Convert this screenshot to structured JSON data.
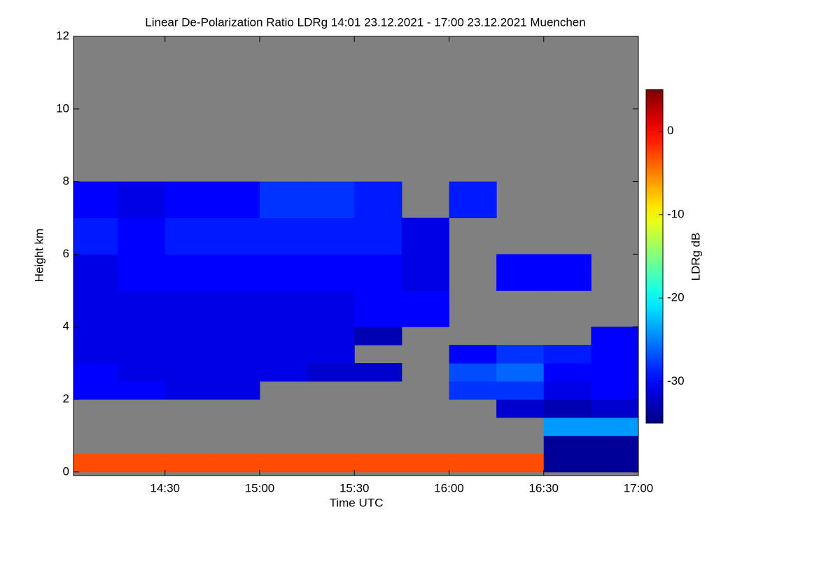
{
  "chart_data": {
    "type": "heatmap",
    "title": "Linear De-Polarization Ratio LDRg   14:01 23.12.2021 - 17:00 23.12.2021 Muenchen",
    "x_label": "Time UTC",
    "y_label": "Height km",
    "colorbar_label": "LDRg dB",
    "colormap": "jet",
    "background": "#808080",
    "xlim": [
      14.0167,
      17.0
    ],
    "xticks": [
      {
        "value": 14.5,
        "label": "14:30"
      },
      {
        "value": 15.0,
        "label": "15:00"
      },
      {
        "value": 15.5,
        "label": "15:30"
      },
      {
        "value": 16.0,
        "label": "16:00"
      },
      {
        "value": 16.5,
        "label": "16:30"
      },
      {
        "value": 17.0,
        "label": "17:00"
      }
    ],
    "ylim": [
      -0.1,
      12
    ],
    "yticks": [
      0,
      2,
      4,
      6,
      8,
      10,
      12
    ],
    "clim": [
      -35,
      5
    ],
    "cticks": [
      -30,
      -20,
      -10,
      0
    ],
    "x": [
      14.0167,
      14.25,
      14.5,
      14.75,
      15.0,
      15.25,
      15.5,
      15.75,
      16.0,
      16.25,
      16.5,
      16.75,
      17.0
    ],
    "y": [
      0,
      0.5,
      1,
      1.5,
      2,
      2.5,
      3,
      3.5,
      4,
      5,
      6,
      7,
      8,
      12
    ],
    "values": [
      [
        -3,
        -3,
        -3,
        -3,
        -3,
        -3,
        -3,
        -3,
        -3,
        -3,
        -34,
        -34
      ],
      [
        null,
        null,
        null,
        null,
        null,
        null,
        null,
        null,
        null,
        null,
        -34,
        -34
      ],
      [
        null,
        null,
        null,
        null,
        null,
        null,
        null,
        null,
        null,
        null,
        -24,
        -24
      ],
      [
        null,
        null,
        null,
        null,
        null,
        null,
        null,
        null,
        null,
        -32,
        -33,
        -32
      ],
      [
        -30,
        -30,
        -31,
        -31,
        null,
        null,
        null,
        null,
        -28,
        -28,
        -31,
        -30
      ],
      [
        -30,
        -31,
        -31,
        -31,
        -31,
        -32,
        -32,
        null,
        -27,
        -26,
        -30,
        -30
      ],
      [
        -31,
        -31,
        -31,
        -31,
        -31,
        -31,
        null,
        null,
        -30,
        -28,
        -29,
        -30
      ],
      [
        -31,
        -31,
        -31,
        -31,
        -31,
        -31,
        -33,
        null,
        null,
        null,
        null,
        -30
      ],
      [
        -31,
        -31,
        -31,
        -31,
        -31,
        -31,
        -30,
        -30,
        null,
        null,
        null,
        null
      ],
      [
        -31,
        -30,
        -30,
        -30,
        -30,
        -30,
        -30,
        -31,
        null,
        -30,
        -30,
        null
      ],
      [
        -29,
        -30,
        -29,
        -29,
        -29,
        -29,
        -29,
        -31,
        null,
        null,
        null,
        null
      ],
      [
        -30,
        -31,
        -30,
        -30,
        -28,
        -28,
        -29,
        null,
        -29,
        null,
        null,
        null
      ],
      [
        null,
        null,
        null,
        null,
        null,
        null,
        null,
        null,
        null,
        null,
        null,
        null
      ]
    ]
  }
}
